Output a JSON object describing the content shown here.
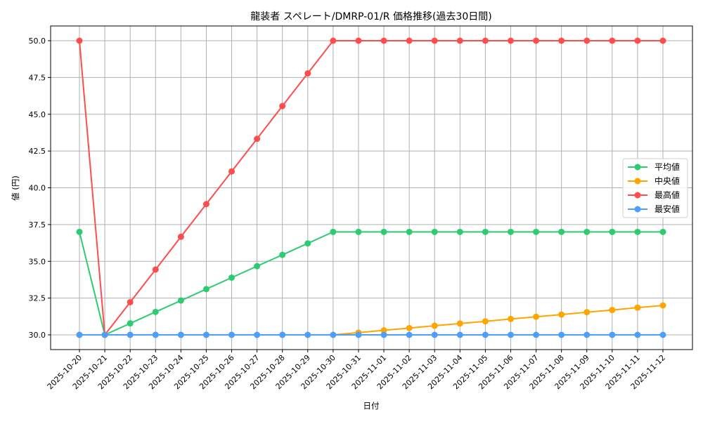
{
  "chart_data": {
    "type": "line",
    "title": "龍装者 スペレート/DMRP-01/R 価格推移(過去30日間)",
    "xlabel": "日付",
    "ylabel": "値 (円)",
    "ylim": [
      29.0,
      51.0
    ],
    "yticks": [
      30.0,
      32.5,
      35.0,
      37.5,
      40.0,
      42.5,
      45.0,
      47.5,
      50.0
    ],
    "ytick_labels": [
      "30.0",
      "32.5",
      "35.0",
      "37.5",
      "40.0",
      "42.5",
      "45.0",
      "47.5",
      "50.0"
    ],
    "grid": true,
    "legend_position": "center right",
    "x": [
      "2025-10-20",
      "2025-10-21",
      "2025-10-22",
      "2025-10-23",
      "2025-10-24",
      "2025-10-25",
      "2025-10-26",
      "2025-10-27",
      "2025-10-28",
      "2025-10-29",
      "2025-10-30",
      "2025-10-31",
      "2025-11-01",
      "2025-11-02",
      "2025-11-03",
      "2025-11-04",
      "2025-11-05",
      "2025-11-06",
      "2025-11-07",
      "2025-11-08",
      "2025-11-09",
      "2025-11-10",
      "2025-11-11",
      "2025-11-12"
    ],
    "series": [
      {
        "name": "平均値",
        "color": "#2ecc71",
        "values": [
          37.0,
          30.0,
          30.78,
          31.56,
          32.33,
          33.11,
          33.89,
          34.67,
          35.44,
          36.22,
          37.0,
          37.0,
          37.0,
          37.0,
          37.0,
          37.0,
          37.0,
          37.0,
          37.0,
          37.0,
          37.0,
          37.0,
          37.0,
          37.0
        ]
      },
      {
        "name": "中央値",
        "color": "#ffa500",
        "values": [
          30.0,
          30.0,
          30.0,
          30.0,
          30.0,
          30.0,
          30.0,
          30.0,
          30.0,
          30.0,
          30.0,
          30.15,
          30.31,
          30.46,
          30.62,
          30.77,
          30.92,
          31.08,
          31.23,
          31.38,
          31.54,
          31.69,
          31.85,
          32.0
        ]
      },
      {
        "name": "最高値",
        "color": "#ff4d4d",
        "values": [
          50.0,
          30.0,
          32.22,
          34.44,
          36.67,
          38.89,
          41.11,
          43.33,
          45.56,
          47.78,
          50.0,
          50.0,
          50.0,
          50.0,
          50.0,
          50.0,
          50.0,
          50.0,
          50.0,
          50.0,
          50.0,
          50.0,
          50.0,
          50.0
        ]
      },
      {
        "name": "最安値",
        "color": "#4d9fff",
        "values": [
          30.0,
          30.0,
          30.0,
          30.0,
          30.0,
          30.0,
          30.0,
          30.0,
          30.0,
          30.0,
          30.0,
          30.0,
          30.0,
          30.0,
          30.0,
          30.0,
          30.0,
          30.0,
          30.0,
          30.0,
          30.0,
          30.0,
          30.0,
          30.0
        ]
      }
    ]
  }
}
